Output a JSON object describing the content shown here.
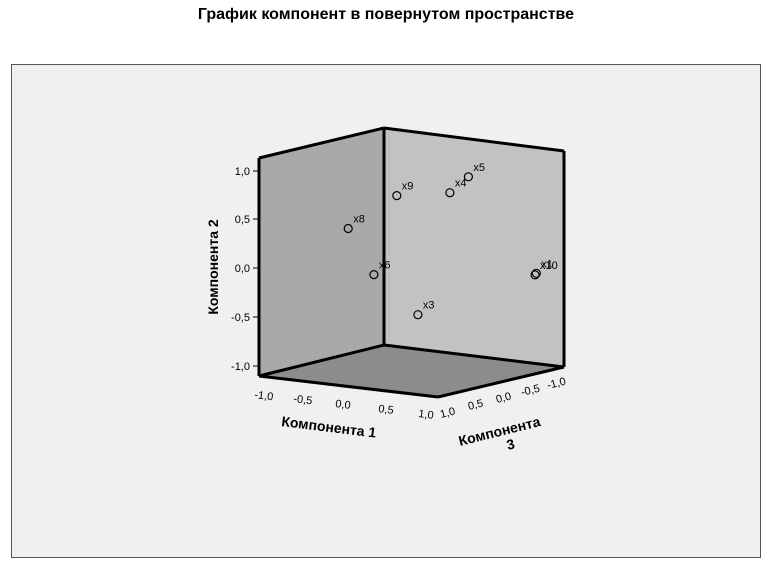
{
  "chart_data": {
    "type": "scatter",
    "title": "График компонент в повернутом пространстве",
    "axes": {
      "x": {
        "label": "Компонента 1",
        "ticks": [
          "-1,0",
          "-0,5",
          "0,0",
          "0,5",
          "1,0"
        ],
        "range": [
          -1.0,
          1.0
        ]
      },
      "y": {
        "label": "Компонента 2",
        "ticks": [
          "1,0",
          "0,5",
          "0,0",
          "-0,5",
          "-1,0"
        ],
        "range": [
          -1.0,
          1.0
        ]
      },
      "z": {
        "label_line1": "Компонента",
        "label_line2": "3",
        "ticks": [
          "1,0",
          "0,5",
          "0,0",
          "-0,5",
          "-1,0"
        ],
        "range": [
          -1.0,
          1.0
        ]
      }
    },
    "points": [
      {
        "name": "x4",
        "x": 0.55,
        "y": 0.8,
        "z": 0.2
      },
      {
        "name": "x5",
        "x": 0.65,
        "y": 0.95,
        "z": 0.05
      },
      {
        "name": "x9",
        "x": 0.1,
        "y": 0.75,
        "z": 0.4
      },
      {
        "name": "x8",
        "x": -0.3,
        "y": 0.4,
        "z": 0.6
      },
      {
        "name": "x6",
        "x": -0.05,
        "y": -0.05,
        "z": 0.55
      },
      {
        "name": "x3",
        "x": 0.3,
        "y": -0.45,
        "z": 0.35
      },
      {
        "name": "x1",
        "x": 0.95,
        "y": -0.1,
        "z": -0.6
      },
      {
        "name": "x10",
        "x": 0.9,
        "y": -0.13,
        "z": -0.65
      }
    ]
  }
}
